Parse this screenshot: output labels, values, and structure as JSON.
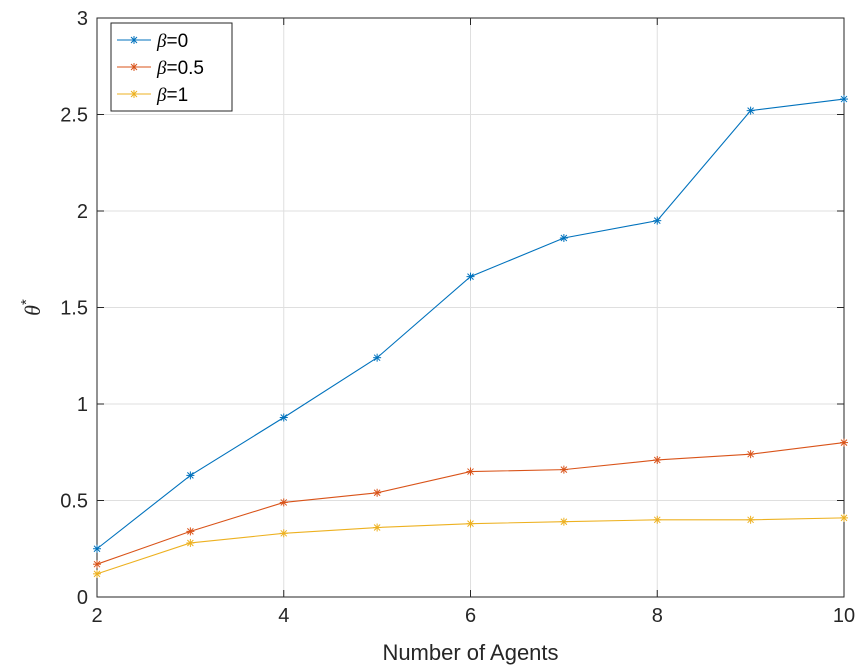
{
  "chart_data": {
    "type": "line",
    "x": [
      2,
      3,
      4,
      5,
      6,
      7,
      8,
      9,
      10
    ],
    "xlabel": "Number of Agents",
    "ylabel": {
      "symbol": "θ",
      "superscript": "*"
    },
    "xlim": [
      2,
      10
    ],
    "ylim": [
      0,
      3
    ],
    "xticks": [
      2,
      4,
      6,
      8,
      10
    ],
    "yticks": [
      0,
      0.5,
      1,
      1.5,
      2,
      2.5,
      3
    ],
    "xtick_labels": [
      "2",
      "4",
      "6",
      "8",
      "10"
    ],
    "ytick_labels": [
      "0",
      "0.5",
      "1",
      "1.5",
      "2",
      "2.5",
      "3"
    ],
    "grid": true,
    "legend_position": "top-left",
    "marker": "asterisk",
    "series": [
      {
        "name": "β=0",
        "symbol": "β",
        "value_label": "=0",
        "color": "#0072BD",
        "values": [
          0.25,
          0.63,
          0.93,
          1.24,
          1.66,
          1.86,
          1.95,
          2.52,
          2.58
        ]
      },
      {
        "name": "β=0.5",
        "symbol": "β",
        "value_label": "=0.5",
        "color": "#D95319",
        "values": [
          0.17,
          0.34,
          0.49,
          0.54,
          0.65,
          0.66,
          0.71,
          0.74,
          0.8
        ]
      },
      {
        "name": "β=1",
        "symbol": "β",
        "value_label": "=1",
        "color": "#EDB120",
        "values": [
          0.12,
          0.28,
          0.33,
          0.36,
          0.38,
          0.39,
          0.4,
          0.4,
          0.41
        ]
      }
    ]
  }
}
